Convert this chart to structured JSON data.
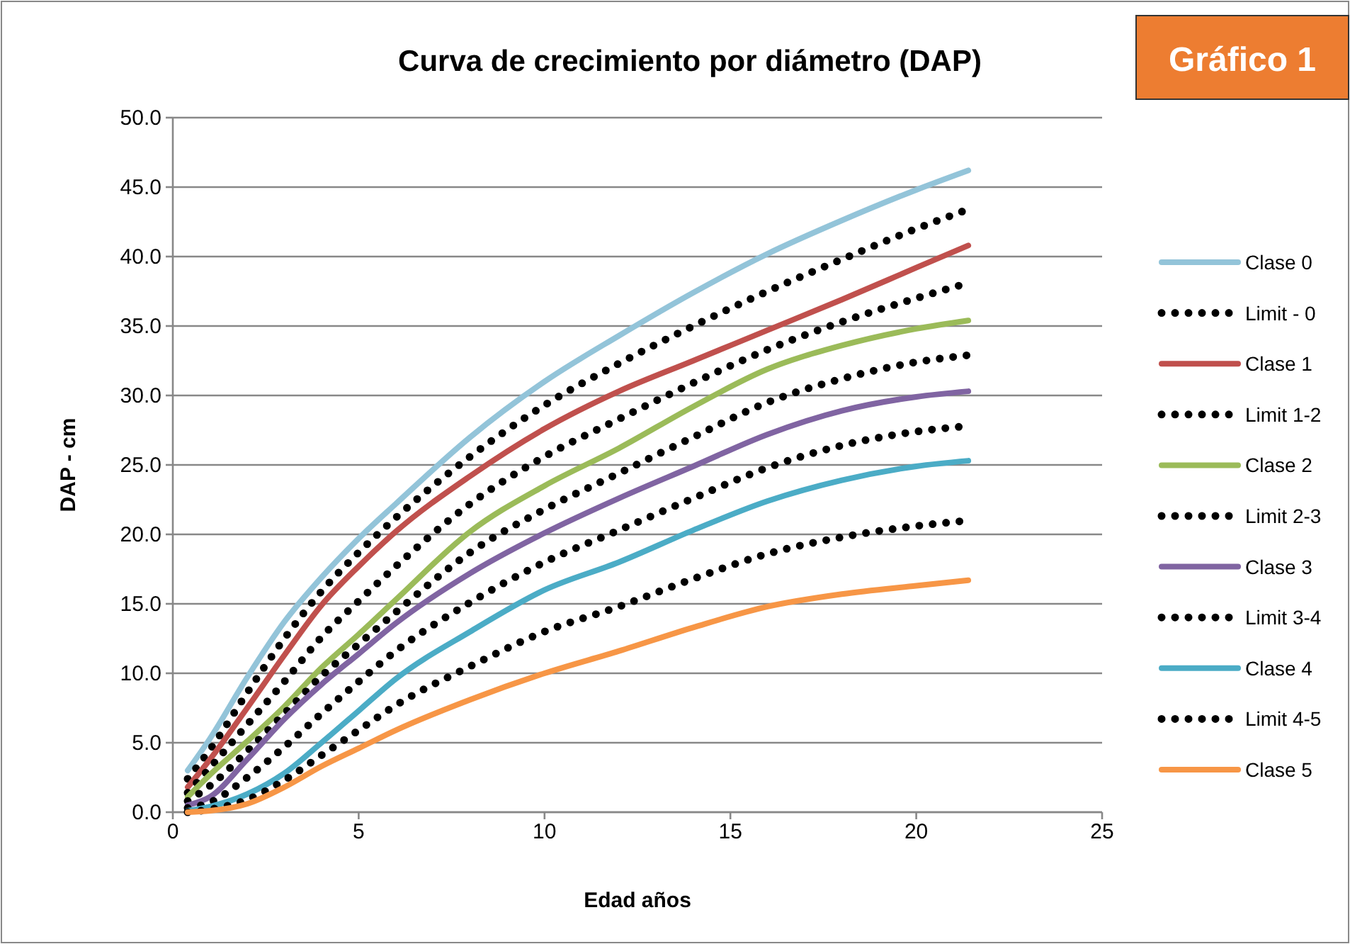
{
  "chart_data": {
    "type": "line",
    "title": "Curva de crecimiento por diámetro (DAP)",
    "xlabel": "Edad años",
    "ylabel": "DAP - cm",
    "annotations": [
      "Gráfico 1"
    ],
    "x": [
      0.4,
      1,
      2,
      3,
      4,
      5,
      6,
      8,
      10,
      12,
      14,
      16,
      18,
      20,
      21.4
    ],
    "xlim": [
      0,
      25
    ],
    "xticks": [
      0,
      5,
      10,
      15,
      20,
      25
    ],
    "ylim": [
      0,
      50
    ],
    "yticks": [
      {
        "value": 0,
        "label": "0.0"
      },
      {
        "value": 5,
        "label": "5.0"
      },
      {
        "value": 10,
        "label": "10.0"
      },
      {
        "value": 15,
        "label": "15.0"
      },
      {
        "value": 20,
        "label": "20.0"
      },
      {
        "value": 25,
        "label": "25.0"
      },
      {
        "value": 30,
        "label": "30.0"
      },
      {
        "value": 35,
        "label": "35.0"
      },
      {
        "value": 40,
        "label": "40.0"
      },
      {
        "value": 45,
        "label": "45.0"
      },
      {
        "value": 50,
        "label": "50.0"
      }
    ],
    "grid": "y",
    "legend": "right",
    "marker": "none",
    "series": [
      {
        "name": "Clase 0",
        "color": "#93c4d9",
        "line_style": "solid",
        "values": [
          3.0,
          5.3,
          9.7,
          13.7,
          16.9,
          19.7,
          22.2,
          27.0,
          31.0,
          34.3,
          37.4,
          40.2,
          42.6,
          44.8,
          46.2
        ]
      },
      {
        "name": "Limit - 0",
        "color": "#000000",
        "line_style": "dotted",
        "values": [
          2.4,
          4.5,
          8.6,
          12.5,
          15.9,
          18.7,
          21.2,
          25.6,
          29.3,
          32.3,
          35.0,
          37.5,
          39.8,
          42.0,
          43.4
        ]
      },
      {
        "name": "Clase 1",
        "color": "#c0504d",
        "line_style": "solid",
        "values": [
          1.8,
          3.8,
          7.5,
          11.3,
          14.9,
          17.7,
          20.2,
          24.2,
          27.6,
          30.3,
          32.5,
          34.7,
          36.9,
          39.2,
          40.8
        ]
      },
      {
        "name": "Limit 1-2",
        "color": "#000000",
        "line_style": "dotted",
        "values": [
          1.4,
          3.2,
          6.3,
          9.4,
          12.6,
          15.2,
          17.7,
          22.2,
          25.6,
          28.3,
          30.9,
          33.3,
          35.3,
          37.0,
          38.1
        ]
      },
      {
        "name": "Clase 2",
        "color": "#9bbb59",
        "line_style": "solid",
        "values": [
          1.1,
          2.7,
          5.1,
          7.6,
          10.4,
          12.8,
          15.3,
          20.2,
          23.5,
          26.2,
          29.2,
          31.9,
          33.6,
          34.8,
          35.4
        ]
      },
      {
        "name": "Limit 2-3",
        "color": "#000000",
        "line_style": "dotted",
        "values": [
          0.8,
          1.9,
          4.4,
          7.1,
          9.8,
          12.1,
          14.4,
          18.7,
          21.8,
          24.4,
          27.0,
          29.5,
          31.2,
          32.4,
          32.9
        ]
      },
      {
        "name": "Clase 3",
        "color": "#8064a2",
        "line_style": "solid",
        "values": [
          0.5,
          1.1,
          3.8,
          6.7,
          9.2,
          11.4,
          13.6,
          17.2,
          20.1,
          22.6,
          24.9,
          27.2,
          28.9,
          29.9,
          30.3
        ]
      },
      {
        "name": "Limit 3-4",
        "color": "#000000",
        "line_style": "dotted",
        "values": [
          0.3,
          0.7,
          2.5,
          4.7,
          7.1,
          9.4,
          11.6,
          15.1,
          18.0,
          20.3,
          22.6,
          24.8,
          26.4,
          27.4,
          27.8
        ]
      },
      {
        "name": "Clase 4",
        "color": "#4bacc6",
        "line_style": "solid",
        "values": [
          0.1,
          0.4,
          1.3,
          2.8,
          5.0,
          7.3,
          9.6,
          13.0,
          16.0,
          18.0,
          20.3,
          22.4,
          23.9,
          24.9,
          25.3
        ]
      },
      {
        "name": "Limit 4-5",
        "color": "#000000",
        "line_style": "dotted",
        "values": [
          0.0,
          0.2,
          0.9,
          2.3,
          4.1,
          5.9,
          7.7,
          10.5,
          13.0,
          14.8,
          16.8,
          18.6,
          19.8,
          20.6,
          21.0
        ]
      },
      {
        "name": "Clase 5",
        "color": "#f79646",
        "line_style": "solid",
        "values": [
          0.0,
          0.1,
          0.6,
          1.8,
          3.3,
          4.6,
          5.9,
          8.1,
          10.0,
          11.6,
          13.3,
          14.8,
          15.7,
          16.3,
          16.7
        ]
      }
    ]
  }
}
